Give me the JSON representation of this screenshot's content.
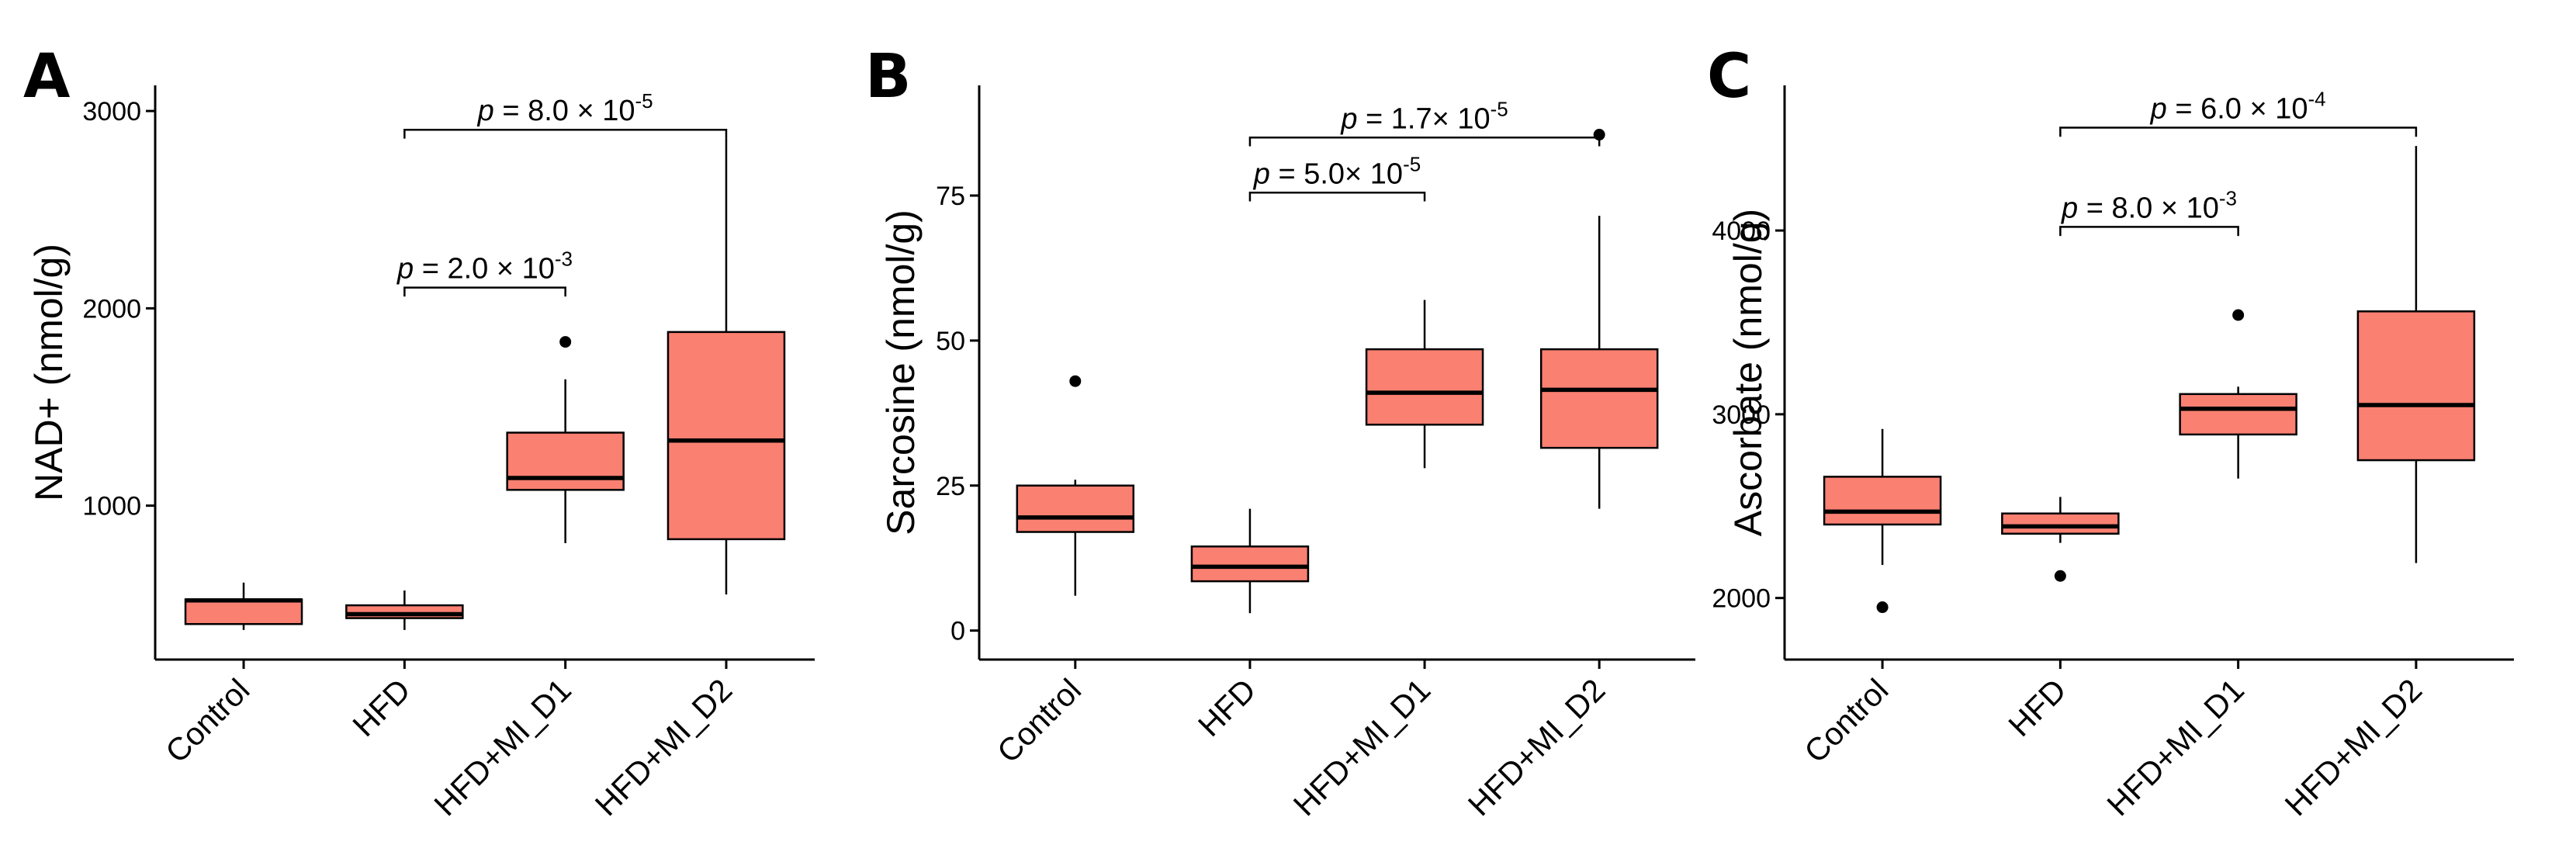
{
  "colors": {
    "box_fill": "#FA8072",
    "line": "#000000"
  },
  "chart_data": [
    {
      "type": "box",
      "panel": "A",
      "ylabel": "NAD+ (nmol/g)",
      "ylim": [
        220,
        3130
      ],
      "yticks": [
        1000,
        2000,
        3000
      ],
      "categories": [
        "Control",
        "HFD",
        "HFD+MI_D1",
        "HFD+MI_D2"
      ],
      "boxes": [
        {
          "min": 370,
          "q1": 400,
          "median": 520,
          "q3": 525,
          "max": 610,
          "outliers": []
        },
        {
          "min": 370,
          "q1": 430,
          "median": 450,
          "q3": 495,
          "max": 570,
          "outliers": []
        },
        {
          "min": 810,
          "q1": 1080,
          "median": 1140,
          "q3": 1370,
          "max": 1640,
          "outliers": [
            1830
          ]
        },
        {
          "min": 550,
          "q1": 830,
          "median": 1330,
          "q3": 1880,
          "max": 2860,
          "outliers": []
        }
      ],
      "annotations": [
        {
          "from": 1,
          "to": 2,
          "y": 2105,
          "tick_drop": 45,
          "prefix": " = 2.0 × 10",
          "exp": "-3"
        },
        {
          "from": 1,
          "to": 3,
          "y": 2905,
          "tick_drop": 45,
          "prefix": " = 8.0 × 10",
          "exp": "-5"
        }
      ]
    },
    {
      "type": "box",
      "panel": "B",
      "ylabel": "Sarcosine (nmol/g)",
      "ylim": [
        -5,
        94
      ],
      "yticks": [
        0,
        25,
        50,
        75
      ],
      "categories": [
        "Control",
        "HFD",
        "HFD+MI_D1",
        "HFD+MI_D2"
      ],
      "boxes": [
        {
          "min": 6,
          "q1": 17,
          "median": 19.5,
          "q3": 25,
          "max": 26,
          "outliers": [
            43
          ]
        },
        {
          "min": 3,
          "q1": 8.5,
          "median": 11,
          "q3": 14.5,
          "max": 21,
          "outliers": []
        },
        {
          "min": 28,
          "q1": 35.5,
          "median": 41,
          "q3": 48.5,
          "max": 57,
          "outliers": []
        },
        {
          "min": 21,
          "q1": 31.5,
          "median": 41.5,
          "q3": 48.5,
          "max": 71.5,
          "outliers": [
            85.5
          ]
        }
      ],
      "annotations": [
        {
          "from": 1,
          "to": 2,
          "y": 75.5,
          "tick_drop": 1.5,
          "prefix": " = 5.0× 10",
          "exp": "-5"
        },
        {
          "from": 1,
          "to": 3,
          "y": 85,
          "tick_drop": 1.5,
          "prefix": " = 1.7× 10",
          "exp": "-5"
        }
      ]
    },
    {
      "type": "box",
      "panel": "C",
      "ylabel": "Ascorbate (nmol/g)",
      "ylim": [
        1665,
        4790
      ],
      "yticks": [
        2000,
        3000,
        4000
      ],
      "categories": [
        "Control",
        "HFD",
        "HFD+MI_D1",
        "HFD+MI_D2"
      ],
      "boxes": [
        {
          "min": 2180,
          "q1": 2400,
          "median": 2470,
          "q3": 2660,
          "max": 2920,
          "outliers": [
            1950
          ]
        },
        {
          "min": 2300,
          "q1": 2350,
          "median": 2390,
          "q3": 2460,
          "max": 2550,
          "outliers": [
            2120
          ]
        },
        {
          "min": 2650,
          "q1": 2890,
          "median": 3030,
          "q3": 3110,
          "max": 3150,
          "outliers": [
            3540
          ]
        },
        {
          "min": 2190,
          "q1": 2750,
          "median": 3050,
          "q3": 3560,
          "max": 4460,
          "outliers": []
        }
      ],
      "annotations": [
        {
          "from": 1,
          "to": 2,
          "y": 4020,
          "tick_drop": 50,
          "prefix": " = 8.0 × 10",
          "exp": "-3"
        },
        {
          "from": 1,
          "to": 3,
          "y": 4560,
          "tick_drop": 50,
          "prefix": " = 6.0 × 10",
          "exp": "-4"
        }
      ]
    }
  ]
}
